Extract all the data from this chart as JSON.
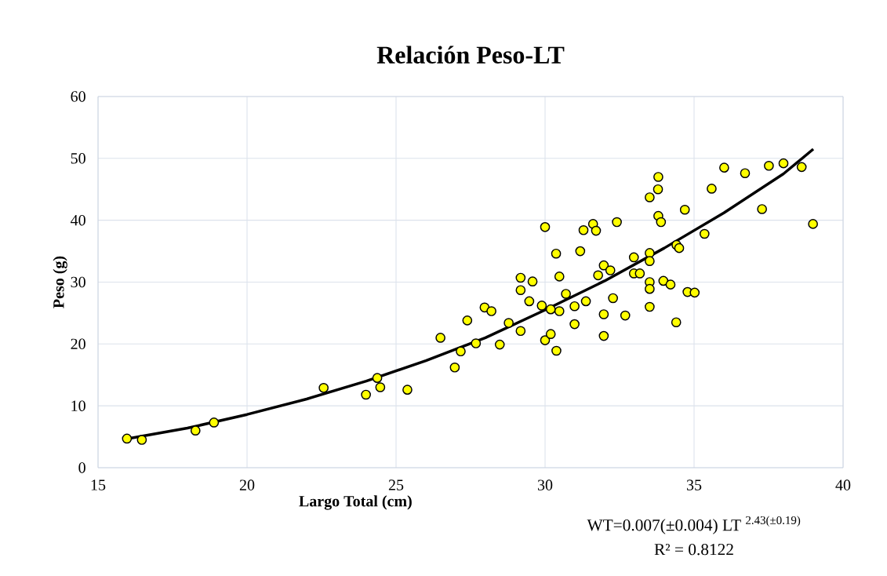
{
  "chart_data": {
    "type": "scatter",
    "title": "Relación Peso-LT",
    "xlabel": "Largo Total (cm)",
    "ylabel": "Peso (g)",
    "xlim": [
      15,
      40
    ],
    "xticks": [
      15,
      20,
      25,
      30,
      35,
      40
    ],
    "ylim": [
      0,
      60
    ],
    "yticks": [
      0,
      10,
      20,
      30,
      40,
      50,
      60
    ],
    "grid": true,
    "annotations": [
      "WT=0.007(±0.004) LT $^{2.43(±0.19)}$",
      "R² = 0.8122"
    ],
    "series": [
      {
        "color": "#ffff00",
        "marker": "circle",
        "x": [
          15.97,
          16.47,
          18.27,
          18.89,
          22.57,
          23.99,
          24.37,
          24.47,
          25.38,
          26.49,
          26.97,
          27.17,
          27.39,
          27.68,
          27.97,
          28.2,
          28.48,
          28.78,
          29.18,
          29.18,
          29.18,
          29.58,
          29.47,
          29.89,
          30.37,
          30.0,
          30.19,
          30.38,
          30.19,
          30.48,
          30.48,
          30.7,
          31.18,
          30.99,
          31.37,
          30.99,
          31.97,
          31.78,
          31.97,
          31.97,
          30.0,
          33.51,
          33.79,
          33.8,
          33.89,
          34.69,
          31.29,
          31.61,
          31.71,
          32.41,
          32.19,
          32.98,
          33.51,
          33.51,
          32.98,
          33.18,
          33.51,
          33.51,
          33.97,
          34.21,
          34.41,
          34.5,
          34.78,
          35.02,
          33.51,
          34.4,
          32.28,
          32.69,
          35.35,
          33.8,
          36.01,
          35.59,
          36.71,
          37.51,
          38.0,
          38.61,
          37.28,
          38.99
        ],
        "values": [
          4.7,
          4.5,
          6.0,
          7.3,
          12.9,
          11.8,
          14.5,
          13.0,
          12.6,
          21.0,
          16.2,
          18.8,
          23.8,
          20.1,
          25.9,
          25.3,
          19.9,
          23.4,
          30.7,
          28.7,
          22.1,
          30.1,
          26.9,
          26.2,
          34.6,
          20.6,
          21.6,
          18.9,
          25.6,
          25.3,
          30.9,
          28.1,
          35.0,
          26.1,
          26.9,
          23.2,
          32.7,
          31.1,
          24.8,
          21.3,
          38.9,
          43.7,
          45.0,
          40.7,
          39.7,
          41.7,
          38.4,
          39.4,
          38.3,
          39.7,
          31.9,
          34.0,
          34.7,
          33.4,
          31.4,
          31.4,
          30.0,
          28.9,
          30.2,
          29.6,
          36.0,
          35.5,
          28.4,
          28.3,
          26.0,
          23.5,
          27.4,
          24.6,
          37.8,
          47.0,
          48.5,
          45.1,
          47.6,
          48.8,
          49.2,
          48.6,
          41.8,
          39.4
        ]
      },
      {
        "type": "line",
        "color": "#000000",
        "marker": "none",
        "x": [
          16,
          18,
          20,
          22,
          24,
          26,
          28,
          30,
          32,
          34,
          36,
          38,
          39
        ],
        "values": [
          4.7,
          6.4,
          8.6,
          11.1,
          14.0,
          17.3,
          21.0,
          25.5,
          30.2,
          35.5,
          41.2,
          47.5,
          51.5
        ]
      }
    ]
  }
}
